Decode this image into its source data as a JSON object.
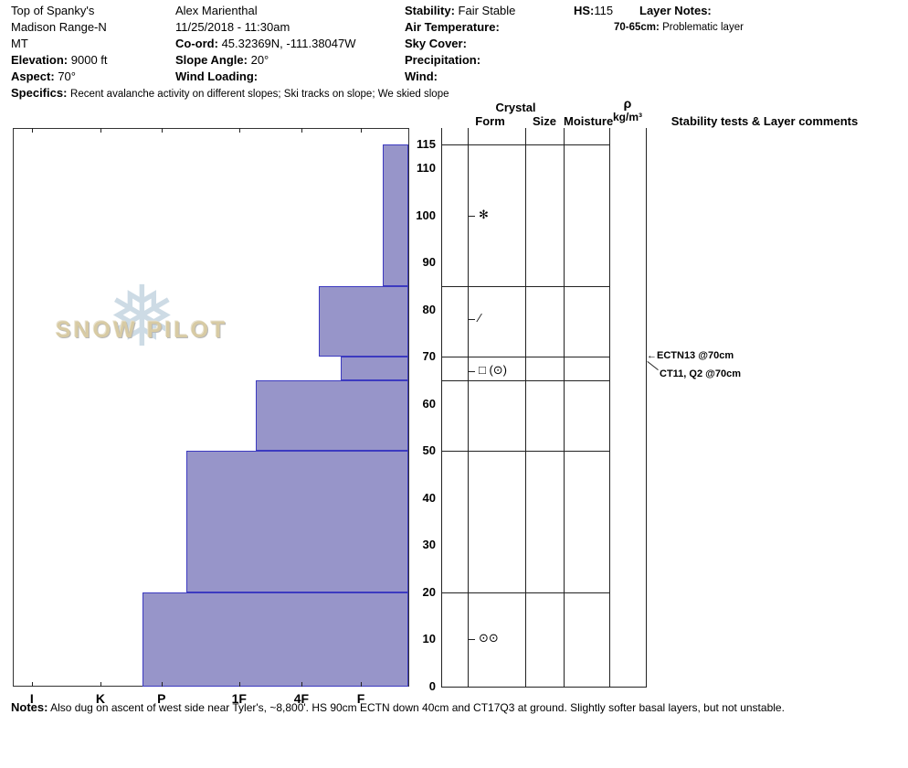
{
  "header": {
    "site": "Top of Spanky's",
    "range": "Madison Range-N",
    "state": "MT",
    "elevation_label": "Elevation:",
    "elevation": "9000 ft",
    "aspect_label": "Aspect:",
    "aspect": "70°",
    "observer": "Alex Marienthal",
    "datetime": "11/25/2018 - 11:30am",
    "coord_label": "Co-ord:",
    "coord": "45.32369N, -111.38047W",
    "slope_angle_label": "Slope Angle:",
    "slope_angle": "20°",
    "wind_loading_label": "Wind Loading:",
    "stability_label": "Stability:",
    "stability": "Fair Stable",
    "air_temp_label": "Air Temperature:",
    "sky_cover_label": "Sky Cover:",
    "precipitation_label": "Precipitation:",
    "wind_label": "Wind:",
    "hs_label": "HS:",
    "hs": "115",
    "layer_notes_label": "Layer Notes:",
    "layer_note_depth": "70-65cm:",
    "layer_note_text": "Problematic layer",
    "specifics_label": "Specifics:",
    "specifics": "Recent avalanche activity on different slopes;  Ski tracks on slope;  We skied slope"
  },
  "columns": {
    "crystal": "Crystal",
    "form": "Form",
    "size": "Size",
    "moisture": "Moisture",
    "rho": "ρ",
    "rho_units": "kg/m³",
    "stability_tests": "Stability tests & Layer comments"
  },
  "chart_data": {
    "type": "bar",
    "subtype": "snow-hardness-profile",
    "depth_axis": {
      "unit": "cm",
      "max": 115,
      "ticks": [
        115,
        110,
        100,
        90,
        80,
        70,
        60,
        50,
        40,
        30,
        20,
        10,
        0
      ]
    },
    "hardness_axis": {
      "labels": [
        "I",
        "K",
        "P",
        "1F",
        "4F",
        "F"
      ]
    },
    "layers": [
      {
        "top_cm": 115,
        "bottom_cm": 85,
        "hardness": "F",
        "width_frac": 0.065
      },
      {
        "top_cm": 85,
        "bottom_cm": 70,
        "hardness": "4F",
        "width_frac": 0.225
      },
      {
        "top_cm": 70,
        "bottom_cm": 65,
        "hardness": "4F-F",
        "width_frac": 0.17
      },
      {
        "top_cm": 65,
        "bottom_cm": 50,
        "hardness": "1F",
        "width_frac": 0.385
      },
      {
        "top_cm": 50,
        "bottom_cm": 20,
        "hardness": "P-1F",
        "width_frac": 0.56
      },
      {
        "top_cm": 20,
        "bottom_cm": 0,
        "hardness": "P",
        "width_frac": 0.67
      }
    ],
    "grain_symbols": [
      {
        "depth_cm": 100,
        "symbol": "✻",
        "name": "stellar"
      },
      {
        "depth_cm": 78,
        "symbol": "∕",
        "name": "decomposing-fragments"
      },
      {
        "depth_cm": 67,
        "symbol": "□ (⊙)",
        "name": "facets-rounding"
      },
      {
        "depth_cm": 10,
        "symbol": "⊙⊙",
        "name": "melt-forms"
      }
    ],
    "annotations": [
      {
        "depth_cm": 70,
        "style": "left-arrow",
        "text": "ECTN13 @70cm"
      },
      {
        "depth_cm": 70,
        "style": "diagonal-arrow",
        "text": "CT11, Q2 @70cm"
      }
    ],
    "bar_color": "#9795c9",
    "bar_border": "#3c3ac0"
  },
  "watermark": {
    "text": "SNOW PILOT",
    "snowflake": "❅"
  },
  "notes": {
    "label": "Notes:",
    "text": "Also dug on ascent of west side near Tyler's, ~8,800'. HS 90cm ECTN down 40cm and CT17Q3 at ground. Slightly softer basal layers, but not unstable."
  }
}
